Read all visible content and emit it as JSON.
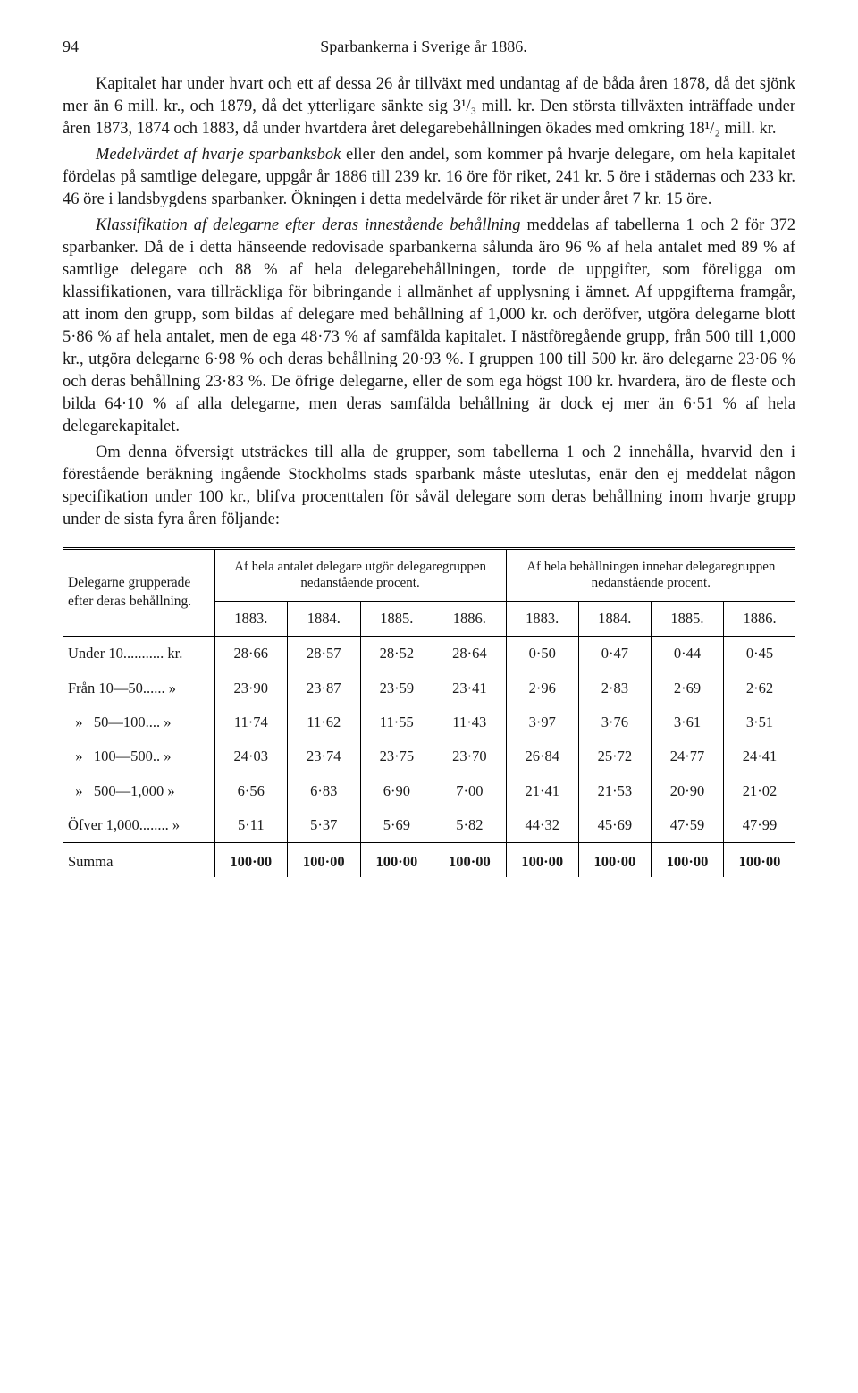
{
  "header": {
    "page_number": "94",
    "running_title": "Sparbankerna i Sverige år 1886."
  },
  "paragraphs": {
    "p1": "Kapitalet har under hvart och ett af dessa 26 år tillväxt med undantag af de båda åren 1878, då det sjönk mer än 6 mill. kr., och 1879, då det ytterligare sänkte sig 3¹/₃ mill. kr. Den största tillväxten inträffade under åren 1873, 1874 och 1883, då under hvartdera året delegarebehållningen ökades med omkring 18¹/₂ mill. kr.",
    "p2_lead_italic": "Medelvärdet af hvarje sparbanksbok",
    "p2_rest": " eller den andel, som kommer på hvarje delegare, om hela kapitalet fördelas på samtlige delegare, uppgår år 1886 till 239 kr. 16 öre för riket, 241 kr. 5 öre i städernas och 233 kr. 46 öre i landsbygdens sparbanker. Ökningen i detta medelvärde för riket är under året 7 kr. 15 öre.",
    "p3_lead_italic": "Klassifikation af delegarne efter deras innestående behållning",
    "p3_rest": " meddelas af tabellerna 1 och 2 för 372 sparbanker. Då de i detta hänseende redovisade sparbankerna sålunda äro 96 % af hela antalet med 89 % af samtlige delegare och 88 % af hela delegarebehållningen, torde de uppgifter, som föreligga om klassifikationen, vara tillräckliga för bibringande i allmänhet af upplysning i ämnet. Af uppgifterna framgår, att inom den grupp, som bildas af delegare med behållning af 1,000 kr. och deröfver, utgöra delegarne blott 5·86 % af hela antalet, men de ega 48·73 % af samfälda kapitalet. I nästföregående grupp, från 500 till 1,000 kr., utgöra delegarne 6·98 % och deras behållning 20·93 %. I gruppen 100 till 500 kr. äro delegarne 23·06 % och deras behållning 23·83 %. De öfrige delegarne, eller de som ega högst 100 kr. hvardera, äro de fleste och bilda 64·10 % af alla delegarne, men deras samfälda behållning är dock ej mer än 6·51 % af hela delegarekapitalet.",
    "p4": "Om denna öfversigt utsträckes till alla de grupper, som tabellerna 1 och 2 innehålla, hvarvid den i förestående beräkning ingående Stockholms stads sparbank måste uteslutas, enär den ej meddelat någon specifikation under 100 kr., blifva procenttalen för såväl delegare som deras behållning inom hvarje grupp under de sista fyra åren följande:"
  },
  "table": {
    "rowhead_label": "Delegarne grupperade efter deras behållning.",
    "group_headers": [
      "Af hela antalet delegare utgör delegaregruppen nedanstående procent.",
      "Af hela behållningen innehar delegaregruppen nedanstående procent."
    ],
    "years": [
      "1883.",
      "1884.",
      "1885.",
      "1886."
    ],
    "rows": [
      {
        "label": "Under 10........... kr.",
        "vals": [
          "28·66",
          "28·57",
          "28·52",
          "28·64",
          "0·50",
          "0·47",
          "0·44",
          "0·45"
        ]
      },
      {
        "label": "Från 10—50...... »",
        "vals": [
          "23·90",
          "23·87",
          "23·59",
          "23·41",
          "2·96",
          "2·83",
          "2·69",
          "2·62"
        ]
      },
      {
        "label": "  »   50—100.... »",
        "vals": [
          "11·74",
          "11·62",
          "11·55",
          "11·43",
          "3·97",
          "3·76",
          "3·61",
          "3·51"
        ]
      },
      {
        "label": "  »   100—500.. »",
        "vals": [
          "24·03",
          "23·74",
          "23·75",
          "23·70",
          "26·84",
          "25·72",
          "24·77",
          "24·41"
        ]
      },
      {
        "label": "  »   500—1,000 »",
        "vals": [
          "6·56",
          "6·83",
          "6·90",
          "7·00",
          "21·41",
          "21·53",
          "20·90",
          "21·02"
        ]
      },
      {
        "label": "Öfver 1,000........ »",
        "vals": [
          "5·11",
          "5·37",
          "5·69",
          "5·82",
          "44·32",
          "45·69",
          "47·59",
          "47·99"
        ]
      }
    ],
    "sum_label": "Summa",
    "sum_vals": [
      "100·00",
      "100·00",
      "100·00",
      "100·00",
      "100·00",
      "100·00",
      "100·00",
      "100·00"
    ]
  }
}
